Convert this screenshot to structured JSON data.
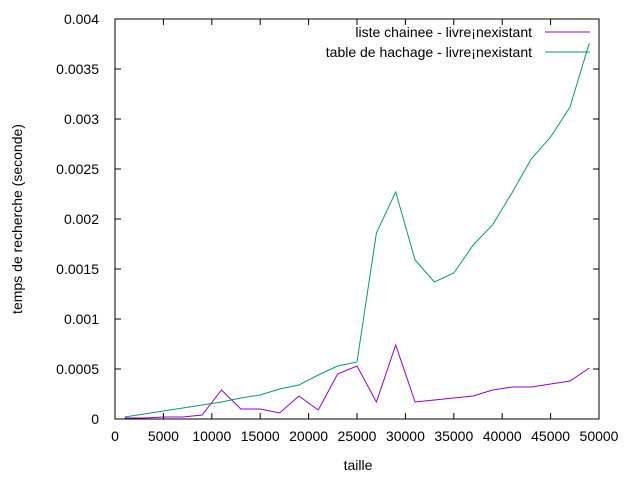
{
  "chart_data": {
    "type": "line",
    "title": "",
    "xlabel": "taille",
    "ylabel": "temps de recherche (seconde)",
    "xlim": [
      0,
      50000
    ],
    "ylim": [
      0,
      0.004
    ],
    "x_ticks": [
      0,
      5000,
      10000,
      15000,
      20000,
      25000,
      30000,
      35000,
      40000,
      45000,
      50000
    ],
    "x_tick_labels": [
      "0",
      "5000",
      "10000",
      "15000",
      "20000",
      "25000",
      "30000",
      "35000",
      "40000",
      "45000",
      "50000"
    ],
    "y_ticks": [
      0,
      0.0005,
      0.001,
      0.0015,
      0.002,
      0.0025,
      0.003,
      0.0035,
      0.004
    ],
    "y_tick_labels": [
      "0",
      "0.0005",
      "0.001",
      "0.0015",
      "0.002",
      "0.0025",
      "0.003",
      "0.0035",
      "0.004"
    ],
    "grid": false,
    "legend_position": "top-right",
    "x": [
      1000,
      3000,
      5000,
      7000,
      9000,
      11000,
      13000,
      15000,
      17000,
      19000,
      21000,
      23000,
      25000,
      27000,
      29000,
      31000,
      33000,
      35000,
      37000,
      39000,
      41000,
      43000,
      45000,
      47000,
      49000
    ],
    "series": [
      {
        "name": "liste chainee - livre¡nexistant",
        "color": "#9400d3",
        "values": [
          1e-05,
          1e-05,
          2e-05,
          2e-05,
          4e-05,
          0.00029,
          0.0001,
          0.0001,
          6e-05,
          0.00023,
          9e-05,
          0.00045,
          0.00053,
          0.00017,
          0.00074,
          0.00017,
          0.00019,
          0.00021,
          0.00023,
          0.00029,
          0.00032,
          0.00032,
          0.00035,
          0.00038,
          0.00051
        ]
      },
      {
        "name": "table de hachage - livre¡nexistant",
        "color": "#009e73",
        "values": [
          2e-05,
          5e-05,
          8e-05,
          0.00011,
          0.00014,
          0.00017,
          0.00021,
          0.00024,
          0.0003,
          0.00034,
          0.00044,
          0.00053,
          0.00057,
          0.00186,
          0.00227,
          0.00159,
          0.00137,
          0.00146,
          0.00174,
          0.00194,
          0.00226,
          0.0026,
          0.00282,
          0.00312,
          0.00376
        ]
      }
    ]
  }
}
